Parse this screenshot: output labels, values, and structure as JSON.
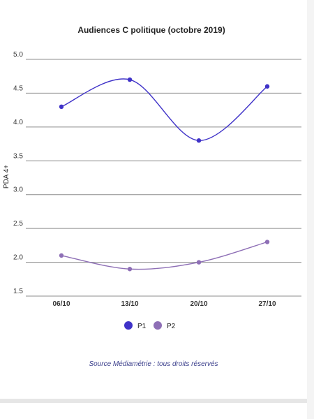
{
  "chart_data": {
    "type": "line",
    "title": "Audiences C politique (octobre 2019)",
    "ylabel": "PDA 4+",
    "xlabel": "",
    "categories": [
      "06/10",
      "13/10",
      "20/10",
      "27/10"
    ],
    "ylim": [
      1.5,
      5.0
    ],
    "yticks": [
      "5.0",
      "4.5",
      "4.0",
      "3.5",
      "3.0",
      "2.5",
      "2.0",
      "1.5"
    ],
    "series": [
      {
        "name": "P1",
        "values": [
          4.3,
          4.7,
          3.8,
          4.6
        ],
        "color": "#3f32c8"
      },
      {
        "name": "P2",
        "values": [
          2.1,
          1.9,
          2.0,
          2.3
        ],
        "color": "#8e6fb6"
      }
    ],
    "grid": true,
    "legend": "bottom"
  },
  "source": "Source Médiamétrie : tous droits réservés"
}
